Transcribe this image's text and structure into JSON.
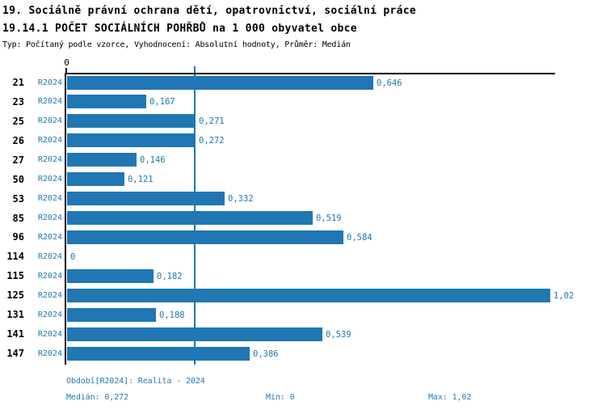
{
  "header": {
    "title_line1": "19. Sociálně právní ochrana dětí, opatrovnictví, sociální práce",
    "title_line2": "19.14.1 POČET SOCIÁLNÍCH POHŘBŮ na 1 000 obyvatel obce",
    "subtitle": "Typ: Počítaný podle vzorce, Vyhodnocení: Absolutní hodnoty, Průměr: Medián"
  },
  "colors": {
    "bar": "#2077b4",
    "accent_text": "#1f77b4",
    "axis": "#000000"
  },
  "chart_data": {
    "type": "bar",
    "orientation": "horizontal",
    "title": "19.14.1 POČET SOCIÁLNÍCH POHŘBŮ na 1 000 obyvatel obce",
    "categories": [
      "21",
      "23",
      "25",
      "26",
      "27",
      "50",
      "53",
      "85",
      "96",
      "114",
      "115",
      "125",
      "131",
      "141",
      "147"
    ],
    "series": [
      {
        "name": "R2024",
        "values": [
          0.646,
          0.167,
          0.271,
          0.272,
          0.146,
          0.121,
          0.332,
          0.519,
          0.584,
          0,
          0.182,
          1.02,
          0.188,
          0.539,
          0.386
        ],
        "value_labels": [
          "0,646",
          "0,167",
          "0,271",
          "0,272",
          "0,146",
          "0,121",
          "0,332",
          "0,519",
          "0,584",
          "0",
          "0,182",
          "1,02",
          "0,188",
          "0,539",
          "0,386"
        ]
      }
    ],
    "xlim": [
      0,
      1.032
    ],
    "x_tick_labels": [
      "0"
    ],
    "median_line_value": 0.272,
    "grid": false,
    "legend": false
  },
  "footer": {
    "period": "Období[R2024]: Realita - 2024",
    "median": "Medián: 0,272",
    "min": "Min: 0",
    "max": "Max: 1,02"
  }
}
